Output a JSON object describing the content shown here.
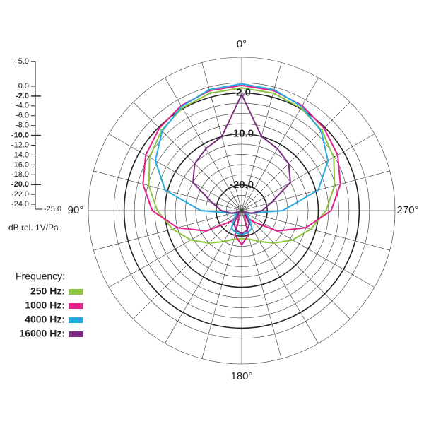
{
  "chart_data": {
    "type": "polar",
    "rlim": [
      -25,
      5
    ],
    "rticks": [
      {
        "value": 5,
        "label": "+5.0"
      },
      {
        "value": 0,
        "label": "0.0"
      },
      {
        "value": -2,
        "label": "-2.0"
      },
      {
        "value": -4,
        "label": "-4.0"
      },
      {
        "value": -6,
        "label": "-6.0"
      },
      {
        "value": -8,
        "label": "-8.0"
      },
      {
        "value": -10,
        "label": "-10.0"
      },
      {
        "value": -12,
        "label": "-12.0"
      },
      {
        "value": -14,
        "label": "-14.0"
      },
      {
        "value": -16,
        "label": "-16.0"
      },
      {
        "value": -18,
        "label": "-18.0"
      },
      {
        "value": -20,
        "label": "-20.0"
      },
      {
        "value": -22,
        "label": "-22.0"
      },
      {
        "value": -24,
        "label": "-24.0"
      },
      {
        "value": -25,
        "label": "-25.0"
      }
    ],
    "ring_labels": [
      {
        "value": -2,
        "label": "-2.0"
      },
      {
        "value": -10,
        "label": "-10.0"
      },
      {
        "value": -20,
        "label": "-20.0"
      }
    ],
    "angle_labels": [
      {
        "value": 0,
        "label": "0°"
      },
      {
        "value": 90,
        "label": "90°"
      },
      {
        "value": 180,
        "label": "180°"
      },
      {
        "value": 270,
        "label": "270°"
      }
    ],
    "unit_label": "dB rel. 1V/Pa",
    "legend_title": "Frequency:",
    "angles": [
      0,
      15,
      30,
      45,
      60,
      75,
      90,
      105,
      120,
      135,
      150,
      165,
      180,
      195,
      210,
      225,
      240,
      255,
      270,
      285,
      300,
      315,
      330,
      345
    ],
    "series": [
      {
        "name": "250 Hz:",
        "color": "#8cc63f",
        "values": [
          -1,
          -1.2,
          -1.8,
          -2.8,
          -4.2,
          -6.2,
          -8.5,
          -11,
          -13.5,
          -16,
          -18,
          -19.2,
          -19.5,
          -19.2,
          -18,
          -16,
          -13.5,
          -11,
          -8.5,
          -6.2,
          -4.2,
          -2.8,
          -1.8,
          -1.2
        ]
      },
      {
        "name": "1000 Hz:",
        "color": "#e0218a",
        "values": [
          -0.5,
          -0.7,
          -1.3,
          -2.2,
          -3.3,
          -5,
          -7.5,
          -12,
          -17,
          -22,
          -24,
          -20,
          -18.3,
          -20,
          -24,
          -22,
          -17,
          -12,
          -7.5,
          -5,
          -3.3,
          -2.2,
          -1.3,
          -0.7
        ]
      },
      {
        "name": "4000 Hz:",
        "color": "#27aae1",
        "values": [
          -0.2,
          -0.5,
          -1.5,
          -3,
          -5.5,
          -9.5,
          -17,
          -23,
          -24,
          -23,
          -21,
          -20.5,
          -20.3,
          -20.5,
          -21,
          -23,
          -24,
          -23,
          -17,
          -9.5,
          -5.5,
          -3,
          -1.5,
          -0.5
        ]
      },
      {
        "name": "16000 Hz:",
        "color": "#7b2d7f",
        "values": [
          -2.3,
          -10,
          -11,
          -12,
          -14,
          -19,
          -21,
          -23,
          -24.5,
          -24,
          -22,
          -21,
          -20.5,
          -21,
          -22,
          -24,
          -24.5,
          -23,
          -21,
          -19,
          -14,
          -12,
          -11,
          -10
        ]
      }
    ]
  }
}
